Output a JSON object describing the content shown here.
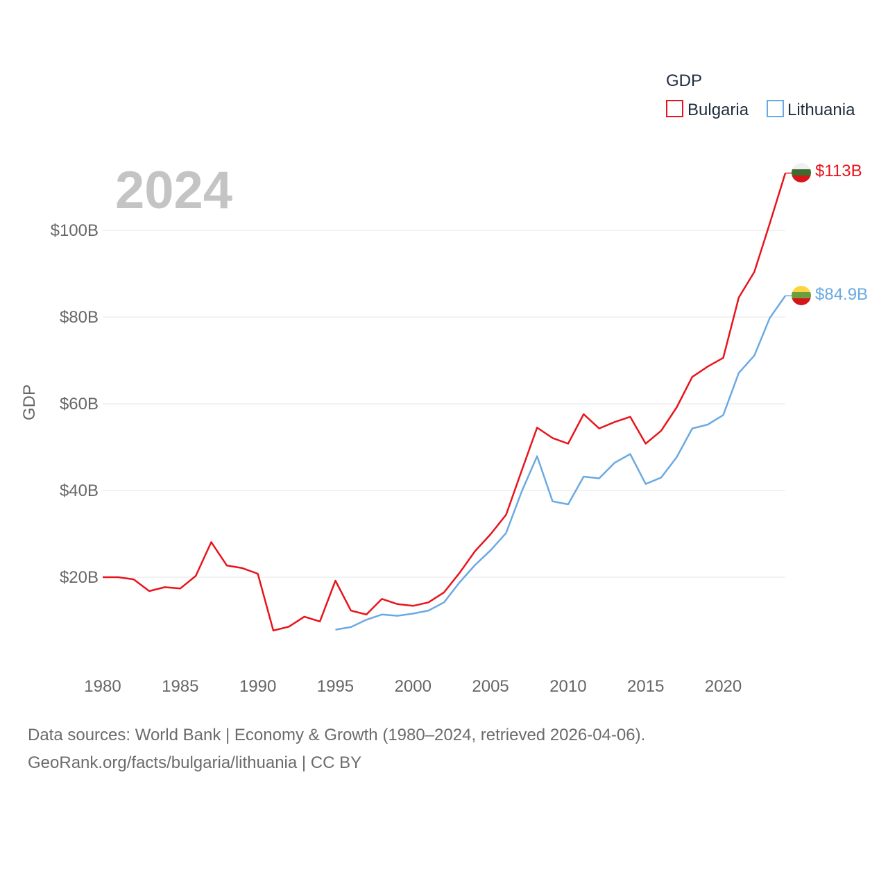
{
  "chart_data": {
    "type": "line",
    "title": "",
    "year_label": "2024",
    "ylabel": "GDP",
    "xlabel": "",
    "xlim": [
      1980,
      2024
    ],
    "ylim": [
      0,
      120
    ],
    "x_ticks": [
      1980,
      1985,
      1990,
      1995,
      2000,
      2005,
      2010,
      2015,
      2020
    ],
    "x_tick_labels": [
      "1980",
      "1985",
      "1990",
      "1995",
      "2000",
      "2005",
      "2010",
      "2015",
      "2020"
    ],
    "y_ticks": [
      20,
      40,
      60,
      80,
      100
    ],
    "y_tick_labels": [
      "$20B",
      "$40B",
      "$60B",
      "$80B",
      "$100B"
    ],
    "grid": true,
    "legend": {
      "title": "GDP",
      "placement": "top-right",
      "entries": [
        "Bulgaria",
        "Lithuania"
      ]
    },
    "series": [
      {
        "name": "Bulgaria",
        "color": "#e8141b",
        "end_label": "$113B",
        "flag": "bulgaria-flag",
        "x": [
          1980,
          1981,
          1982,
          1983,
          1984,
          1985,
          1986,
          1987,
          1988,
          1989,
          1990,
          1991,
          1992,
          1993,
          1994,
          1995,
          1996,
          1997,
          1998,
          1999,
          2000,
          2001,
          2002,
          2003,
          2004,
          2005,
          2006,
          2007,
          2008,
          2009,
          2010,
          2011,
          2012,
          2013,
          2014,
          2015,
          2016,
          2017,
          2018,
          2019,
          2020,
          2021,
          2022,
          2023,
          2024
        ],
        "values": [
          20.0,
          20.0,
          19.5,
          16.8,
          17.7,
          17.4,
          20.3,
          28.1,
          22.7,
          22.1,
          20.8,
          7.7,
          8.6,
          10.9,
          9.8,
          19.2,
          12.3,
          11.4,
          15.0,
          13.8,
          13.4,
          14.2,
          16.5,
          21.0,
          26.0,
          29.9,
          34.4,
          44.5,
          54.5,
          52.1,
          50.8,
          57.6,
          54.3,
          55.8,
          57.0,
          50.8,
          53.8,
          59.2,
          66.2,
          68.6,
          70.6,
          84.5,
          90.4,
          101.6,
          113.2
        ]
      },
      {
        "name": "Lithuania",
        "color": "#6aaae2",
        "end_label": "$84.9B",
        "flag": "lithuania-flag",
        "x": [
          1995,
          1996,
          1997,
          1998,
          1999,
          2000,
          2001,
          2002,
          2003,
          2004,
          2005,
          2006,
          2007,
          2008,
          2009,
          2010,
          2011,
          2012,
          2013,
          2014,
          2015,
          2016,
          2017,
          2018,
          2019,
          2020,
          2021,
          2022,
          2023,
          2024
        ],
        "values": [
          7.9,
          8.5,
          10.2,
          11.4,
          11.1,
          11.6,
          12.3,
          14.2,
          18.8,
          22.8,
          26.2,
          30.2,
          39.7,
          47.9,
          37.5,
          36.8,
          43.2,
          42.8,
          46.4,
          48.4,
          41.5,
          43.0,
          47.7,
          54.3,
          55.2,
          57.4,
          67.1,
          71.1,
          79.8,
          84.9
        ]
      }
    ]
  },
  "source": {
    "line1": "Data sources: World Bank | Economy & Growth (1980–2024, retrieved 2026-04-06).",
    "line2": "GeoRank.org/facts/bulgaria/lithuania | CC BY"
  }
}
